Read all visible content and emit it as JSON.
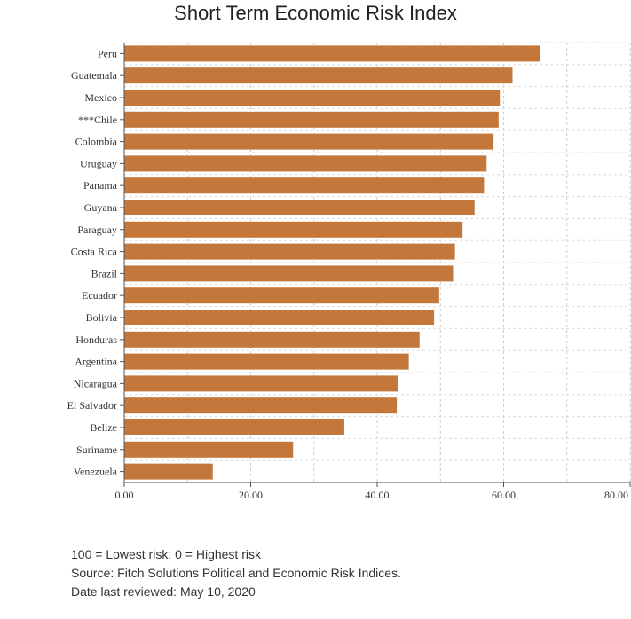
{
  "chart_data": {
    "type": "bar",
    "orientation": "horizontal",
    "title": "Short Term Economic Risk Index",
    "categories": [
      "Peru",
      "Guatemala",
      "Mexico",
      "***Chile",
      "Colombia",
      "Uruguay",
      "Panama",
      "Guyana",
      "Paraguay",
      "Costa Rica",
      "Brazil",
      "Ecuador",
      "Bolivia",
      "Honduras",
      "Argentina",
      "Nicaragua",
      "El Salvador",
      "Belize",
      "Suriname",
      "Venezuela"
    ],
    "values": [
      65.8,
      61.4,
      59.4,
      59.2,
      58.4,
      57.3,
      56.9,
      55.4,
      53.5,
      52.3,
      52.0,
      49.8,
      49.0,
      46.7,
      45.0,
      43.3,
      43.1,
      34.8,
      26.7,
      14.0
    ],
    "xlim": [
      0,
      80
    ],
    "xticks": [
      "0.00",
      "20.00",
      "40.00",
      "60.00",
      "80.00"
    ],
    "xlabel": "",
    "ylabel": "",
    "bar_color": "#c4773a",
    "grid": true
  },
  "notes": [
    "100 = Lowest risk; 0 = Highest risk",
    "Source: Fitch Solutions Political and Economic Risk Indices.",
    "Date last reviewed: May 10, 2020"
  ]
}
